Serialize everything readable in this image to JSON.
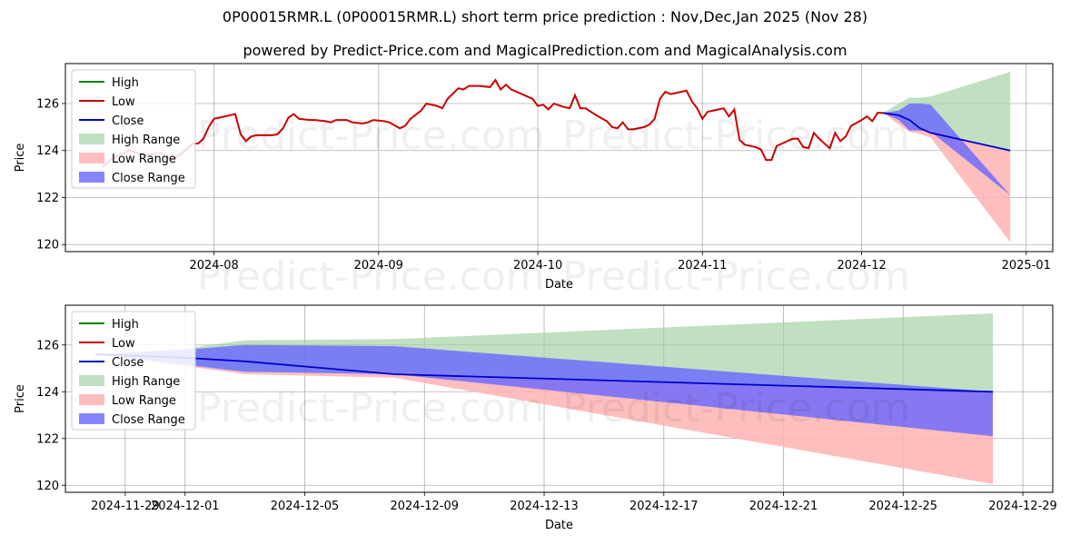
{
  "title": "0P00015RMR.L (0P00015RMR.L) short term price prediction : Nov,Dec,Jan 2025 (Nov 28)",
  "subtitle": "powered by Predict-Price.com and MagicalPrediction.com and MagicalAnalysis.com",
  "watermark": "Predict-Price.com",
  "colors": {
    "high": "#008000",
    "low": "#cc0000",
    "close": "#0000cc",
    "high_range": "#9fcf9f",
    "low_range": "#ffb3b3",
    "close_range": "#6666ff"
  },
  "chart_data": [
    {
      "type": "line",
      "xlabel": "Date",
      "ylabel": "Price",
      "x_range": [
        "2024-07-04",
        "2025-01-06"
      ],
      "ylim": [
        119.7,
        127.7
      ],
      "y_ticks": [
        120,
        122,
        124,
        126
      ],
      "x_ticks": [
        {
          "date": "2024-08-01",
          "label": "2024-08"
        },
        {
          "date": "2024-09-01",
          "label": "2024-09"
        },
        {
          "date": "2024-10-01",
          "label": "2024-10"
        },
        {
          "date": "2024-11-01",
          "label": "2024-11"
        },
        {
          "date": "2024-12-01",
          "label": "2024-12"
        },
        {
          "date": "2025-01-01",
          "label": "2025-01"
        }
      ],
      "grid": true,
      "legend_position": "top-left",
      "legend": [
        "High",
        "Low",
        "Close",
        "High Range",
        "Low Range",
        "Close Range"
      ],
      "low_series": [
        [
          "2024-07-11",
          123.3
        ],
        [
          "2024-07-13",
          123.7
        ],
        [
          "2024-07-16",
          124.0
        ],
        [
          "2024-07-19",
          123.8
        ],
        [
          "2024-07-22",
          123.9
        ],
        [
          "2024-07-24",
          123.6
        ],
        [
          "2024-07-26",
          123.9
        ],
        [
          "2024-07-27",
          124.1
        ],
        [
          "2024-07-28",
          124.3
        ],
        [
          "2024-07-29",
          124.3
        ],
        [
          "2024-07-30",
          124.5
        ],
        [
          "2024-07-31",
          125.0
        ],
        [
          "2024-08-01",
          125.35
        ],
        [
          "2024-08-02",
          125.4
        ],
        [
          "2024-08-05",
          125.55
        ],
        [
          "2024-08-06",
          124.7
        ],
        [
          "2024-08-07",
          124.4
        ],
        [
          "2024-08-08",
          124.6
        ],
        [
          "2024-08-09",
          124.65
        ],
        [
          "2024-08-12",
          124.65
        ],
        [
          "2024-08-13",
          124.7
        ],
        [
          "2024-08-14",
          124.95
        ],
        [
          "2024-08-15",
          125.4
        ],
        [
          "2024-08-16",
          125.55
        ],
        [
          "2024-08-17",
          125.35
        ],
        [
          "2024-08-19",
          125.3
        ],
        [
          "2024-08-20",
          125.3
        ],
        [
          "2024-08-22",
          125.25
        ],
        [
          "2024-08-23",
          125.2
        ],
        [
          "2024-08-24",
          125.3
        ],
        [
          "2024-08-26",
          125.3
        ],
        [
          "2024-08-27",
          125.2
        ],
        [
          "2024-08-29",
          125.15
        ],
        [
          "2024-08-30",
          125.2
        ],
        [
          "2024-08-31",
          125.3
        ],
        [
          "2024-09-02",
          125.25
        ],
        [
          "2024-09-03",
          125.2
        ],
        [
          "2024-09-05",
          124.95
        ],
        [
          "2024-09-06",
          125.05
        ],
        [
          "2024-09-07",
          125.35
        ],
        [
          "2024-09-09",
          125.7
        ],
        [
          "2024-09-10",
          126.0
        ],
        [
          "2024-09-12",
          125.9
        ],
        [
          "2024-09-13",
          125.8
        ],
        [
          "2024-09-14",
          126.2
        ],
        [
          "2024-09-16",
          126.65
        ],
        [
          "2024-09-17",
          126.6
        ],
        [
          "2024-09-18",
          126.75
        ],
        [
          "2024-09-20",
          126.75
        ],
        [
          "2024-09-22",
          126.7
        ],
        [
          "2024-09-23",
          127.0
        ],
        [
          "2024-09-24",
          126.6
        ],
        [
          "2024-09-25",
          126.8
        ],
        [
          "2024-09-26",
          126.6
        ],
        [
          "2024-09-27",
          126.5
        ],
        [
          "2024-09-29",
          126.3
        ],
        [
          "2024-09-30",
          126.2
        ],
        [
          "2024-10-01",
          125.9
        ],
        [
          "2024-10-02",
          125.95
        ],
        [
          "2024-10-03",
          125.75
        ],
        [
          "2024-10-04",
          126.0
        ],
        [
          "2024-10-06",
          125.85
        ],
        [
          "2024-10-07",
          125.8
        ],
        [
          "2024-10-08",
          126.35
        ],
        [
          "2024-10-09",
          125.8
        ],
        [
          "2024-10-10",
          125.8
        ],
        [
          "2024-10-12",
          125.5
        ],
        [
          "2024-10-14",
          125.25
        ],
        [
          "2024-10-15",
          125.0
        ],
        [
          "2024-10-16",
          124.95
        ],
        [
          "2024-10-17",
          125.2
        ],
        [
          "2024-10-18",
          124.9
        ],
        [
          "2024-10-19",
          124.9
        ],
        [
          "2024-10-21",
          125.0
        ],
        [
          "2024-10-22",
          125.1
        ],
        [
          "2024-10-23",
          125.35
        ],
        [
          "2024-10-24",
          126.2
        ],
        [
          "2024-10-25",
          126.5
        ],
        [
          "2024-10-26",
          126.4
        ],
        [
          "2024-10-28",
          126.5
        ],
        [
          "2024-10-29",
          126.55
        ],
        [
          "2024-10-30",
          126.1
        ],
        [
          "2024-10-31",
          125.8
        ],
        [
          "2024-11-01",
          125.35
        ],
        [
          "2024-11-02",
          125.65
        ],
        [
          "2024-11-04",
          125.75
        ],
        [
          "2024-11-05",
          125.8
        ],
        [
          "2024-11-06",
          125.45
        ],
        [
          "2024-11-07",
          125.75
        ],
        [
          "2024-11-08",
          124.45
        ],
        [
          "2024-11-09",
          124.25
        ],
        [
          "2024-11-11",
          124.15
        ],
        [
          "2024-11-12",
          124.05
        ],
        [
          "2024-11-13",
          123.6
        ],
        [
          "2024-11-14",
          123.6
        ],
        [
          "2024-11-15",
          124.2
        ],
        [
          "2024-11-16",
          124.3
        ],
        [
          "2024-11-18",
          124.5
        ],
        [
          "2024-11-19",
          124.5
        ],
        [
          "2024-11-20",
          124.15
        ],
        [
          "2024-11-21",
          124.1
        ],
        [
          "2024-11-22",
          124.75
        ],
        [
          "2024-11-23",
          124.5
        ],
        [
          "2024-11-25",
          124.1
        ],
        [
          "2024-11-26",
          124.75
        ],
        [
          "2024-11-27",
          124.4
        ],
        [
          "2024-11-28",
          124.6
        ],
        [
          "2024-11-29",
          125.05
        ],
        [
          "2024-12-01",
          125.3
        ],
        [
          "2024-12-02",
          125.45
        ],
        [
          "2024-12-03",
          125.25
        ],
        [
          "2024-12-04",
          125.6
        ],
        [
          "2024-12-05",
          125.6
        ]
      ],
      "forecast": {
        "dates": [
          "2024-12-05",
          "2024-12-08",
          "2024-12-10",
          "2024-12-12",
          "2024-12-14",
          "2024-12-29"
        ],
        "high_upper": [
          125.6,
          126.0,
          126.25,
          126.25,
          126.3,
          127.35
        ],
        "high_lower": [
          125.6,
          125.2,
          124.9,
          124.9,
          124.85,
          124.0
        ],
        "low_upper": [
          125.6,
          125.5,
          125.1,
          125.0,
          124.85,
          124.0
        ],
        "low_lower": [
          125.6,
          125.1,
          124.8,
          124.7,
          124.55,
          120.1
        ],
        "close_upper": [
          125.6,
          125.7,
          126.0,
          126.0,
          125.95,
          122.1
        ],
        "close_lower": [
          125.6,
          125.3,
          124.85,
          124.85,
          124.8,
          122.1
        ],
        "close": [
          125.6,
          125.5,
          125.3,
          124.95,
          124.75,
          124.0
        ]
      }
    },
    {
      "type": "line",
      "xlabel": "Date",
      "ylabel": "Price",
      "x_range": [
        "2024-11-27",
        "2024-12-30"
      ],
      "ylim": [
        119.7,
        127.7
      ],
      "y_ticks": [
        120,
        122,
        124,
        126
      ],
      "x_ticks": [
        {
          "date": "2024-11-29",
          "label": "2024-11-29"
        },
        {
          "date": "2024-12-01",
          "label": "2024-12-01"
        },
        {
          "date": "2024-12-05",
          "label": "2024-12-05"
        },
        {
          "date": "2024-12-09",
          "label": "2024-12-09"
        },
        {
          "date": "2024-12-13",
          "label": "2024-12-13"
        },
        {
          "date": "2024-12-17",
          "label": "2024-12-17"
        },
        {
          "date": "2024-12-21",
          "label": "2024-12-21"
        },
        {
          "date": "2024-12-25",
          "label": "2024-12-25"
        },
        {
          "date": "2024-12-29",
          "label": "2024-12-29"
        }
      ],
      "grid": true,
      "legend_position": "top-left",
      "legend": [
        "High",
        "Low",
        "Close",
        "High Range",
        "Low Range",
        "Close Range"
      ],
      "low_series": [],
      "forecast": {
        "dates": [
          "2024-11-28",
          "2024-12-01",
          "2024-12-03",
          "2024-12-08",
          "2024-12-28"
        ],
        "high_upper": [
          125.6,
          125.85,
          126.2,
          126.25,
          127.35
        ],
        "high_lower": [
          125.6,
          125.2,
          124.85,
          124.8,
          124.0
        ],
        "low_upper": [
          125.6,
          125.15,
          124.85,
          124.8,
          124.0
        ],
        "low_lower": [
          125.6,
          125.1,
          124.75,
          124.6,
          120.05
        ],
        "close_upper": [
          125.6,
          125.8,
          126.0,
          125.95,
          124.0
        ],
        "close_lower": [
          125.6,
          125.15,
          124.85,
          124.75,
          122.1
        ],
        "close": [
          125.6,
          125.45,
          125.3,
          124.75,
          124.0
        ]
      }
    }
  ]
}
